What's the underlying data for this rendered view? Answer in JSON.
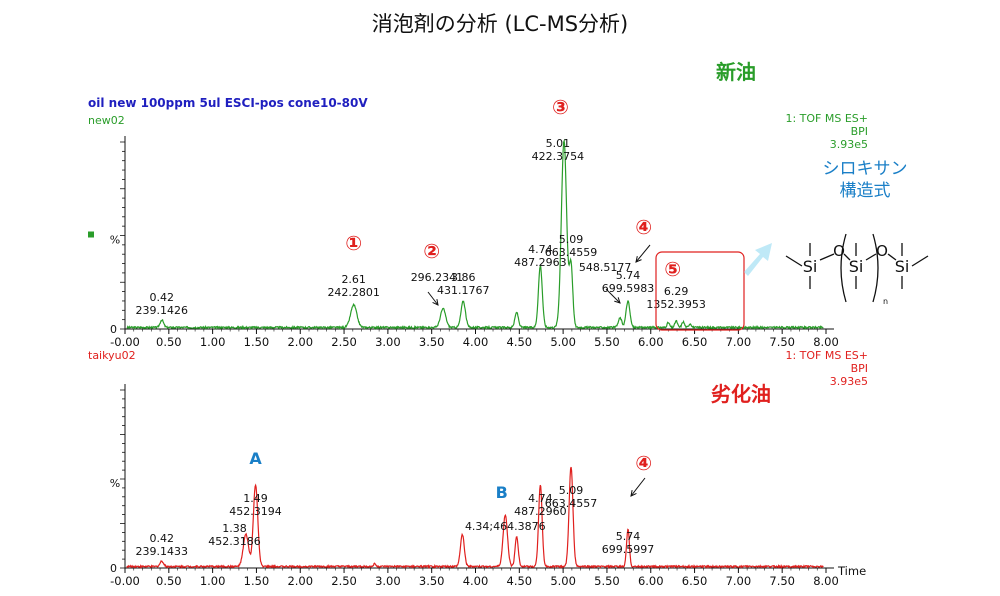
{
  "title": "消泡剤の分析 (LC-MS分析)",
  "new_oil_label": "新油",
  "degraded_oil_label": "劣化油",
  "top_panel": {
    "header": "oil new 100ppm 5ul ESCI-pos cone10-80V",
    "sample": "new02",
    "detector": "1: TOF MS ES+",
    "mode": "BPI",
    "intensity": "3.93e5",
    "y_axis_label": "%"
  },
  "bottom_panel": {
    "sample": "taikyu02",
    "detector": "1: TOF MS ES+",
    "mode": "BPI",
    "intensity": "3.93e5",
    "y_axis_label": "%"
  },
  "siloxane": {
    "line1": "シロキサン",
    "line2": "構造式",
    "atom_si": "Si",
    "atom_o": "O",
    "subscript": "n"
  },
  "colors": {
    "top_trace": "#2a9d2a",
    "bottom_trace": "#e0201e",
    "marker": "#e0201e",
    "label_blue": "#1a7fc7",
    "box": "#e0201e",
    "arrow_fill": "#bfe9f7"
  },
  "chart_data": [
    {
      "type": "line",
      "name": "new oil chromatogram",
      "xlabel": "",
      "ylabel": "%",
      "xlim": [
        -0.0,
        8.0
      ],
      "ylim": [
        0,
        100
      ],
      "x_ticks": [
        "-0.00",
        "0.50",
        "1.00",
        "1.50",
        "2.00",
        "2.50",
        "3.00",
        "3.50",
        "4.00",
        "4.50",
        "5.00",
        "5.50",
        "6.00",
        "6.50",
        "7.00",
        "7.50",
        "8.00"
      ],
      "y_ticks": [
        "0"
      ],
      "peaks": [
        {
          "rt": 0.42,
          "height": 4,
          "width": 0.02
        },
        {
          "rt": 2.61,
          "height": 12,
          "width": 0.035
        },
        {
          "rt": 3.63,
          "height": 10,
          "width": 0.03
        },
        {
          "rt": 3.86,
          "height": 14,
          "width": 0.025
        },
        {
          "rt": 4.47,
          "height": 8,
          "width": 0.02
        },
        {
          "rt": 4.74,
          "height": 33,
          "width": 0.022
        },
        {
          "rt": 5.01,
          "height": 100,
          "width": 0.03
        },
        {
          "rt": 5.09,
          "height": 33,
          "width": 0.02
        },
        {
          "rt": 5.65,
          "height": 5,
          "width": 0.02
        },
        {
          "rt": 5.74,
          "height": 14,
          "width": 0.022
        },
        {
          "rt": 6.2,
          "height": 2.5,
          "width": 0.015
        },
        {
          "rt": 6.29,
          "height": 3.5,
          "width": 0.015
        },
        {
          "rt": 6.37,
          "height": 3,
          "width": 0.015
        },
        {
          "rt": 6.45,
          "height": 2,
          "width": 0.015
        }
      ],
      "annotations": [
        {
          "rt": 0.42,
          "dy": -28,
          "lines": [
            "0.42",
            "239.1426"
          ]
        },
        {
          "rt": 2.61,
          "dy": -46,
          "lines": [
            "2.61",
            "242.2801"
          ]
        },
        {
          "rt": 3.56,
          "dy": -48,
          "lines": [
            "296.2341"
          ]
        },
        {
          "rt": 3.86,
          "dy": -48,
          "lines": [
            "3.86",
            "431.1767"
          ]
        },
        {
          "rt": 4.74,
          "dy": -76,
          "lines": [
            "4.74",
            "487.2963"
          ]
        },
        {
          "rt": 4.94,
          "dy": -182,
          "lines": [
            "5.01",
            "422.3754"
          ]
        },
        {
          "rt": 5.09,
          "dy": -86,
          "lines": [
            "5.09",
            "663.4559"
          ]
        },
        {
          "rt": 5.48,
          "dy": -58,
          "lines": [
            "548.5177"
          ]
        },
        {
          "rt": 5.74,
          "dy": -50,
          "lines": [
            "5.74",
            "699.5983"
          ]
        },
        {
          "rt": 6.29,
          "dy": -34,
          "lines": [
            "6.29",
            "1352.3953"
          ]
        }
      ],
      "markers": [
        {
          "text": "①",
          "rt": 2.61
        },
        {
          "text": "②",
          "rt": 3.5
        },
        {
          "text": "③",
          "rt": 4.97
        },
        {
          "text": "④",
          "rt": 5.92
        },
        {
          "text": "⑤",
          "rt": 6.25
        }
      ]
    },
    {
      "type": "line",
      "name": "degraded oil chromatogram",
      "xlabel": "Time",
      "ylabel": "%",
      "xlim": [
        -0.0,
        8.0
      ],
      "ylim": [
        0,
        100
      ],
      "x_ticks": [
        "-0.00",
        "0.50",
        "1.00",
        "1.50",
        "2.00",
        "2.50",
        "3.00",
        "3.50",
        "4.00",
        "4.50",
        "5.00",
        "5.50",
        "6.00",
        "6.50",
        "7.00",
        "7.50",
        "8.00"
      ],
      "y_ticks": [
        "0"
      ],
      "peaks": [
        {
          "rt": 0.42,
          "height": 3,
          "width": 0.02
        },
        {
          "rt": 1.38,
          "height": 18,
          "width": 0.03
        },
        {
          "rt": 1.49,
          "height": 46,
          "width": 0.025
        },
        {
          "rt": 2.85,
          "height": 2,
          "width": 0.01
        },
        {
          "rt": 3.85,
          "height": 18,
          "width": 0.022
        },
        {
          "rt": 4.34,
          "height": 29,
          "width": 0.025
        },
        {
          "rt": 4.47,
          "height": 17,
          "width": 0.018
        },
        {
          "rt": 4.74,
          "height": 46,
          "width": 0.02
        },
        {
          "rt": 5.09,
          "height": 56,
          "width": 0.022
        },
        {
          "rt": 5.74,
          "height": 21,
          "width": 0.016
        }
      ],
      "annotations": [
        {
          "rt": 0.42,
          "dy": -26,
          "lines": [
            "0.42",
            "239.1433"
          ]
        },
        {
          "rt": 1.25,
          "dy": -36,
          "lines": [
            "1.38",
            "452.3186"
          ]
        },
        {
          "rt": 1.49,
          "dy": -66,
          "lines": [
            "1.49",
            "452.3194"
          ]
        },
        {
          "rt": 4.34,
          "dy": -38,
          "lines": [
            "4.34;464.3876"
          ]
        },
        {
          "rt": 4.74,
          "dy": -66,
          "lines": [
            "4.74",
            "487.2960"
          ]
        },
        {
          "rt": 5.09,
          "dy": -74,
          "lines": [
            "5.09",
            "663.4557"
          ]
        },
        {
          "rt": 5.74,
          "dy": -28,
          "lines": [
            "5.74",
            "699.5997"
          ]
        }
      ],
      "markers": [
        {
          "text": "A",
          "rt": 1.49,
          "color": "blue"
        },
        {
          "text": "B",
          "rt": 4.3,
          "color": "blue"
        },
        {
          "text": "④",
          "rt": 5.92,
          "color": "red"
        }
      ]
    }
  ]
}
